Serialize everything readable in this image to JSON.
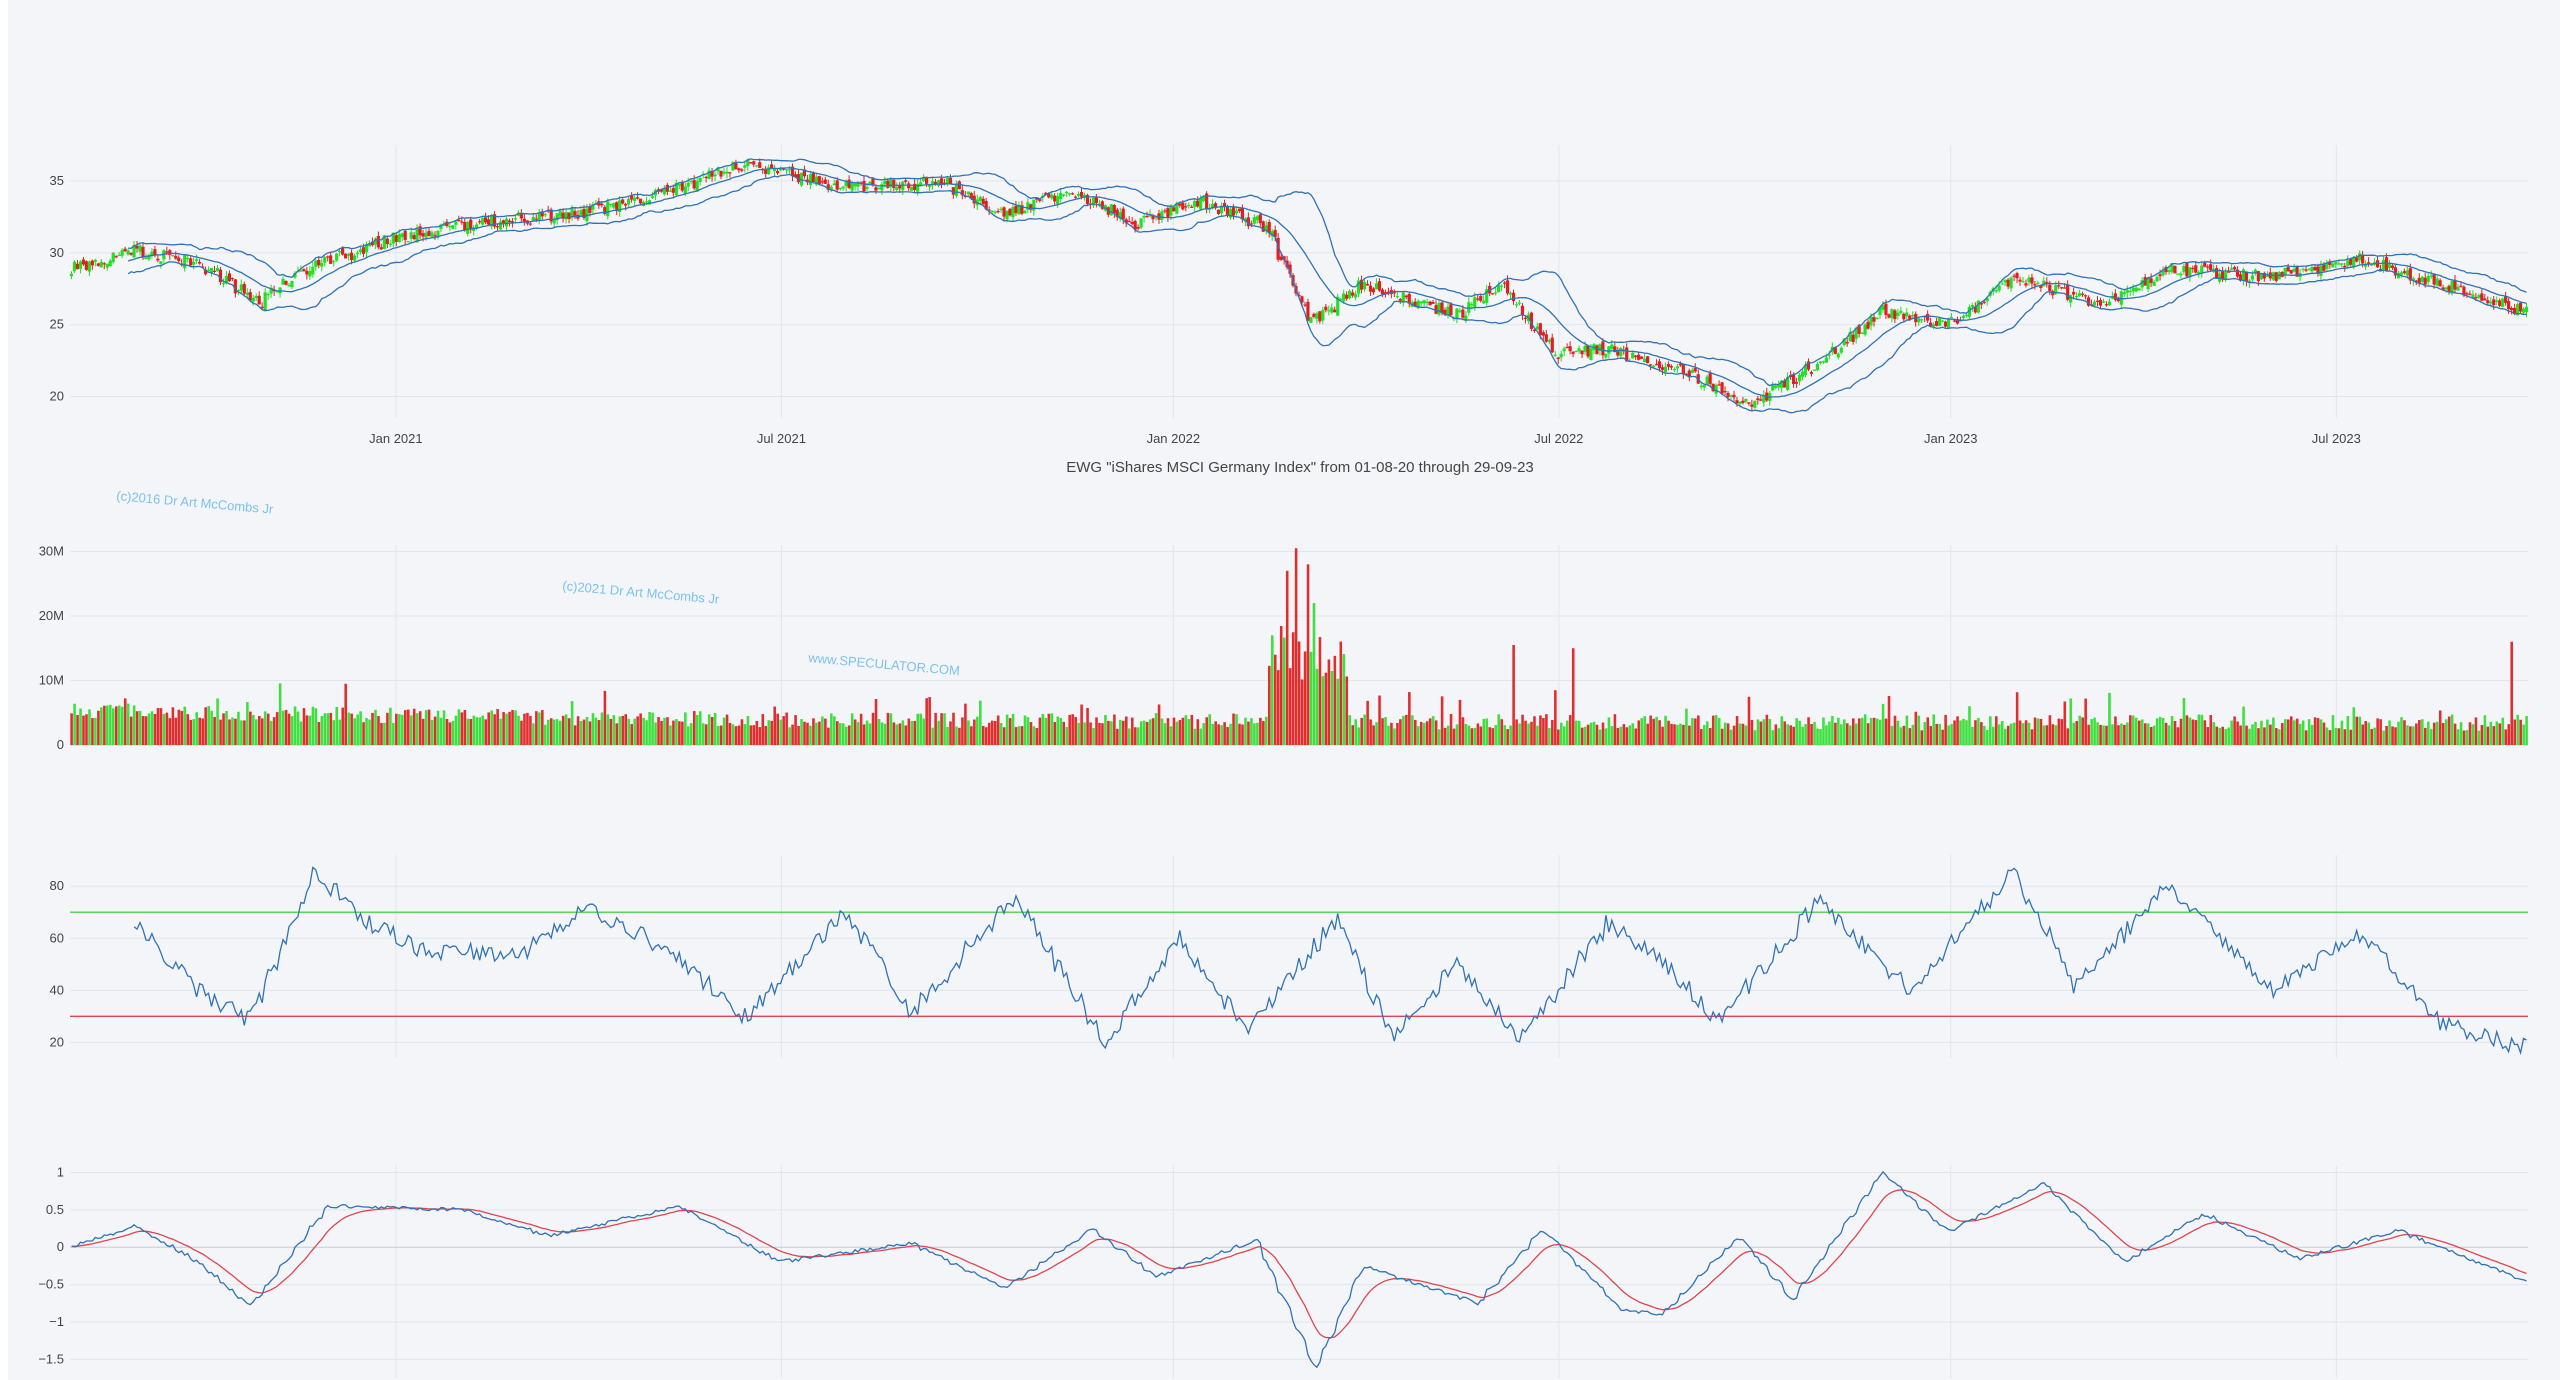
{
  "chart_data": [
    {
      "id": "price",
      "type": "candlestick",
      "title": "EWG \"iShares MSCI Germany Index\" from 01-08-20 through 29-09-23",
      "x_range": [
        "2020-08-01",
        "2023-09-29"
      ],
      "x_ticks": [
        "Jan 2021",
        "Jul 2021",
        "Jan 2022",
        "Jul 2022",
        "Jan 2023",
        "Jul 2023"
      ],
      "y_ticks": [
        "35",
        "30",
        "25",
        "20"
      ],
      "ylim": [
        18.5,
        37.5
      ],
      "overlays": [
        "upper band",
        "middle band",
        "lower band"
      ],
      "close_path": [
        [
          "2020-08-01",
          28.8
        ],
        [
          "2020-09-01",
          30.2
        ],
        [
          "2020-10-01",
          29.3
        ],
        [
          "2020-10-30",
          26.5
        ],
        [
          "2020-11-15",
          28.6
        ],
        [
          "2021-01-01",
          31.0
        ],
        [
          "2021-02-15",
          32.2
        ],
        [
          "2021-04-01",
          32.8
        ],
        [
          "2021-05-15",
          34.6
        ],
        [
          "2021-06-15",
          36.2
        ],
        [
          "2021-07-01",
          35.6
        ],
        [
          "2021-08-01",
          34.5
        ],
        [
          "2021-09-15",
          34.9
        ],
        [
          "2021-10-15",
          32.8
        ],
        [
          "2021-11-15",
          34.3
        ],
        [
          "2021-12-15",
          32.0
        ],
        [
          "2022-01-15",
          33.6
        ],
        [
          "2022-02-15",
          31.8
        ],
        [
          "2022-03-07",
          25.0
        ],
        [
          "2022-04-01",
          27.9
        ],
        [
          "2022-05-15",
          25.6
        ],
        [
          "2022-06-05",
          27.8
        ],
        [
          "2022-07-01",
          23.0
        ],
        [
          "2022-07-25",
          23.3
        ],
        [
          "2022-09-01",
          21.6
        ],
        [
          "2022-09-30",
          19.4
        ],
        [
          "2022-11-01",
          22.3
        ],
        [
          "2022-12-01",
          25.9
        ],
        [
          "2023-01-01",
          25.0
        ],
        [
          "2023-02-01",
          28.3
        ],
        [
          "2023-03-15",
          26.4
        ],
        [
          "2023-04-15",
          28.9
        ],
        [
          "2023-06-01",
          28.3
        ],
        [
          "2023-07-15",
          29.6
        ],
        [
          "2023-09-29",
          25.9
        ]
      ]
    },
    {
      "id": "volume",
      "type": "bar",
      "y_ticks": [
        "30M",
        "20M",
        "10M",
        "0"
      ],
      "ylim": [
        0,
        31000000
      ],
      "spikes": [
        [
          "2022-02-24",
          27000000
        ],
        [
          "2022-03-01",
          30500000
        ],
        [
          "2022-03-07",
          28000000
        ],
        [
          "2022-03-09",
          22000000
        ],
        [
          "2022-02-18",
          14000000
        ],
        [
          "2022-07-08",
          15000000
        ],
        [
          "2022-06-10",
          15500000
        ],
        [
          "2023-09-22",
          16000000
        ]
      ]
    },
    {
      "id": "rsi",
      "type": "line",
      "y_ticks": [
        "80",
        "60",
        "40",
        "20"
      ],
      "ylim": [
        14,
        92
      ],
      "upper_level": 70,
      "lower_level": 30,
      "level_colors": {
        "upper": "#5fd35f",
        "lower": "#e0454f"
      },
      "path": [
        [
          "2020-09-01",
          66
        ],
        [
          "2020-10-01",
          40
        ],
        [
          "2020-10-25",
          28
        ],
        [
          "2020-11-25",
          86
        ],
        [
          "2020-12-15",
          68
        ],
        [
          "2021-01-15",
          55
        ],
        [
          "2021-03-01",
          54
        ],
        [
          "2021-04-01",
          72
        ],
        [
          "2021-05-01",
          60
        ],
        [
          "2021-06-15",
          30
        ],
        [
          "2021-08-01",
          70
        ],
        [
          "2021-09-01",
          32
        ],
        [
          "2021-10-20",
          76
        ],
        [
          "2021-12-01",
          20
        ],
        [
          "2022-01-05",
          60
        ],
        [
          "2022-02-05",
          24
        ],
        [
          "2022-03-20",
          68
        ],
        [
          "2022-04-15",
          22
        ],
        [
          "2022-05-15",
          50
        ],
        [
          "2022-06-15",
          22
        ],
        [
          "2022-07-25",
          66
        ],
        [
          "2022-08-15",
          55
        ],
        [
          "2022-09-15",
          28
        ],
        [
          "2022-11-01",
          74
        ],
        [
          "2022-12-15",
          40
        ],
        [
          "2023-02-01",
          86
        ],
        [
          "2023-03-01",
          42
        ],
        [
          "2023-04-15",
          80
        ],
        [
          "2023-06-01",
          40
        ],
        [
          "2023-07-15",
          61
        ],
        [
          "2023-08-20",
          28
        ],
        [
          "2023-09-25",
          18
        ]
      ]
    },
    {
      "id": "oscillator",
      "type": "line",
      "y_ticks": [
        "1",
        "0.5",
        "0",
        "−0.5",
        "−1",
        "−1.5"
      ],
      "ylim": [
        -1.75,
        1.1
      ],
      "series_colors": [
        "#2f72b8",
        "#e0454f"
      ],
      "path": [
        [
          "2020-08-01",
          0.0
        ],
        [
          "2020-09-01",
          0.28
        ],
        [
          "2020-10-01",
          -0.2
        ],
        [
          "2020-10-25",
          -0.8
        ],
        [
          "2020-12-01",
          0.55
        ],
        [
          "2021-02-01",
          0.5
        ],
        [
          "2021-03-15",
          0.15
        ],
        [
          "2021-05-15",
          0.55
        ],
        [
          "2021-07-01",
          -0.2
        ],
        [
          "2021-09-01",
          0.05
        ],
        [
          "2021-10-15",
          -0.55
        ],
        [
          "2021-11-25",
          0.25
        ],
        [
          "2021-12-25",
          -0.4
        ],
        [
          "2022-02-10",
          0.1
        ],
        [
          "2022-03-10",
          -1.62
        ],
        [
          "2022-04-01",
          -0.25
        ],
        [
          "2022-05-25",
          -0.75
        ],
        [
          "2022-06-25",
          0.25
        ],
        [
          "2022-08-01",
          -0.85
        ],
        [
          "2022-08-20",
          -0.9
        ],
        [
          "2022-09-25",
          0.15
        ],
        [
          "2022-10-20",
          -0.7
        ],
        [
          "2022-12-01",
          1.0
        ],
        [
          "2023-01-01",
          0.2
        ],
        [
          "2023-02-15",
          0.85
        ],
        [
          "2023-03-25",
          -0.2
        ],
        [
          "2023-05-01",
          0.45
        ],
        [
          "2023-06-15",
          -0.15
        ],
        [
          "2023-08-01",
          0.22
        ],
        [
          "2023-09-29",
          -0.45
        ]
      ]
    }
  ],
  "watermarks": [
    "(c)2016 Dr Art McCombs Jr",
    "(c)2021 Dr Art McCombs Jr",
    "www.SPECULATOR.COM"
  ]
}
